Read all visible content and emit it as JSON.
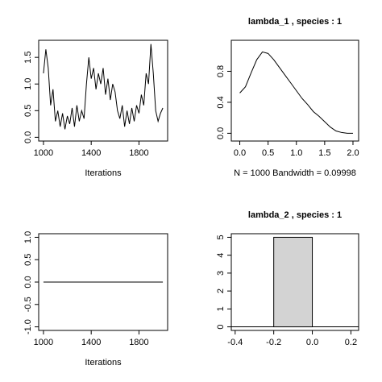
{
  "chart_data": [
    {
      "type": "line",
      "xlabel": "Iterations",
      "x": [
        1000,
        1020,
        1040,
        1060,
        1080,
        1100,
        1120,
        1140,
        1160,
        1180,
        1200,
        1220,
        1240,
        1260,
        1280,
        1300,
        1320,
        1340,
        1360,
        1380,
        1400,
        1420,
        1440,
        1460,
        1480,
        1500,
        1520,
        1540,
        1560,
        1580,
        1600,
        1620,
        1640,
        1660,
        1680,
        1700,
        1720,
        1740,
        1760,
        1780,
        1800,
        1820,
        1840,
        1860,
        1880,
        1900,
        1920,
        1940,
        1960,
        1980,
        2000
      ],
      "values": [
        1.2,
        1.65,
        1.3,
        0.6,
        0.9,
        0.3,
        0.5,
        0.2,
        0.45,
        0.15,
        0.4,
        0.25,
        0.55,
        0.2,
        0.6,
        0.3,
        0.5,
        0.35,
        1.0,
        1.5,
        1.1,
        1.3,
        0.9,
        1.2,
        1.0,
        1.3,
        0.8,
        1.1,
        0.7,
        1.0,
        0.85,
        0.5,
        0.35,
        0.6,
        0.2,
        0.5,
        0.25,
        0.55,
        0.3,
        0.6,
        0.45,
        0.8,
        0.6,
        1.2,
        1.0,
        1.75,
        1.2,
        0.5,
        0.3,
        0.45,
        0.55
      ],
      "color": "#000000",
      "xlim": [
        960,
        2040
      ],
      "xticks": [
        1000,
        1400,
        1800
      ],
      "ylim": [
        -0.07,
        1.82
      ],
      "yticks": [
        {
          "value": 0,
          "label": "0.0"
        },
        0.5,
        {
          "value": 1,
          "label": "1.0"
        },
        1.5
      ]
    },
    {
      "type": "line",
      "title": "lambda_1 , species : 1",
      "xlabel": "N = 1000   Bandwidth = 0.09998",
      "x": [
        0,
        0.1,
        0.2,
        0.3,
        0.4,
        0.5,
        0.6,
        0.7,
        0.8,
        0.9,
        1.0,
        1.1,
        1.2,
        1.3,
        1.4,
        1.5,
        1.6,
        1.7,
        1.8,
        1.9,
        2.0
      ],
      "values": [
        0.52,
        0.6,
        0.78,
        0.95,
        1.05,
        1.03,
        0.95,
        0.85,
        0.75,
        0.65,
        0.55,
        0.45,
        0.37,
        0.28,
        0.22,
        0.15,
        0.08,
        0.03,
        0.01,
        0,
        0
      ],
      "color": "#000000",
      "xlim": [
        -0.15,
        2.1
      ],
      "xticks": [
        {
          "value": 0,
          "label": "0.0"
        },
        0.5,
        {
          "value": 1,
          "label": "1.0"
        },
        1.5,
        {
          "value": 2,
          "label": "2.0"
        }
      ],
      "ylim": [
        -0.1,
        1.2
      ],
      "yticks": [
        {
          "value": 0,
          "label": "0.0"
        },
        0.4,
        0.8
      ]
    },
    {
      "type": "line",
      "xlabel": "Iterations",
      "x": [
        1000,
        2000
      ],
      "values": [
        0,
        0
      ],
      "color": "#000000",
      "xlim": [
        960,
        2040
      ],
      "xticks": [
        1000,
        1400,
        1800
      ],
      "ylim": [
        -1.08,
        1.08
      ],
      "yticks": [
        {
          "value": -1,
          "label": "-1.0"
        },
        -0.5,
        {
          "value": 0,
          "label": "0.0"
        },
        0.5,
        {
          "value": 1,
          "label": "1.0"
        }
      ]
    },
    {
      "type": "histogram",
      "title": "lambda_2 , species : 1",
      "bins": [
        -0.2,
        0
      ],
      "values": [
        5
      ],
      "color": "#d3d3d3",
      "xlim": [
        -0.42,
        0.24
      ],
      "xticks": [
        -0.4,
        -0.2,
        {
          "value": 0,
          "label": "0.0"
        },
        0.2
      ],
      "ylim": [
        -0.2,
        5.2
      ],
      "yticks": [
        0,
        1,
        2,
        3,
        4,
        5
      ]
    }
  ]
}
